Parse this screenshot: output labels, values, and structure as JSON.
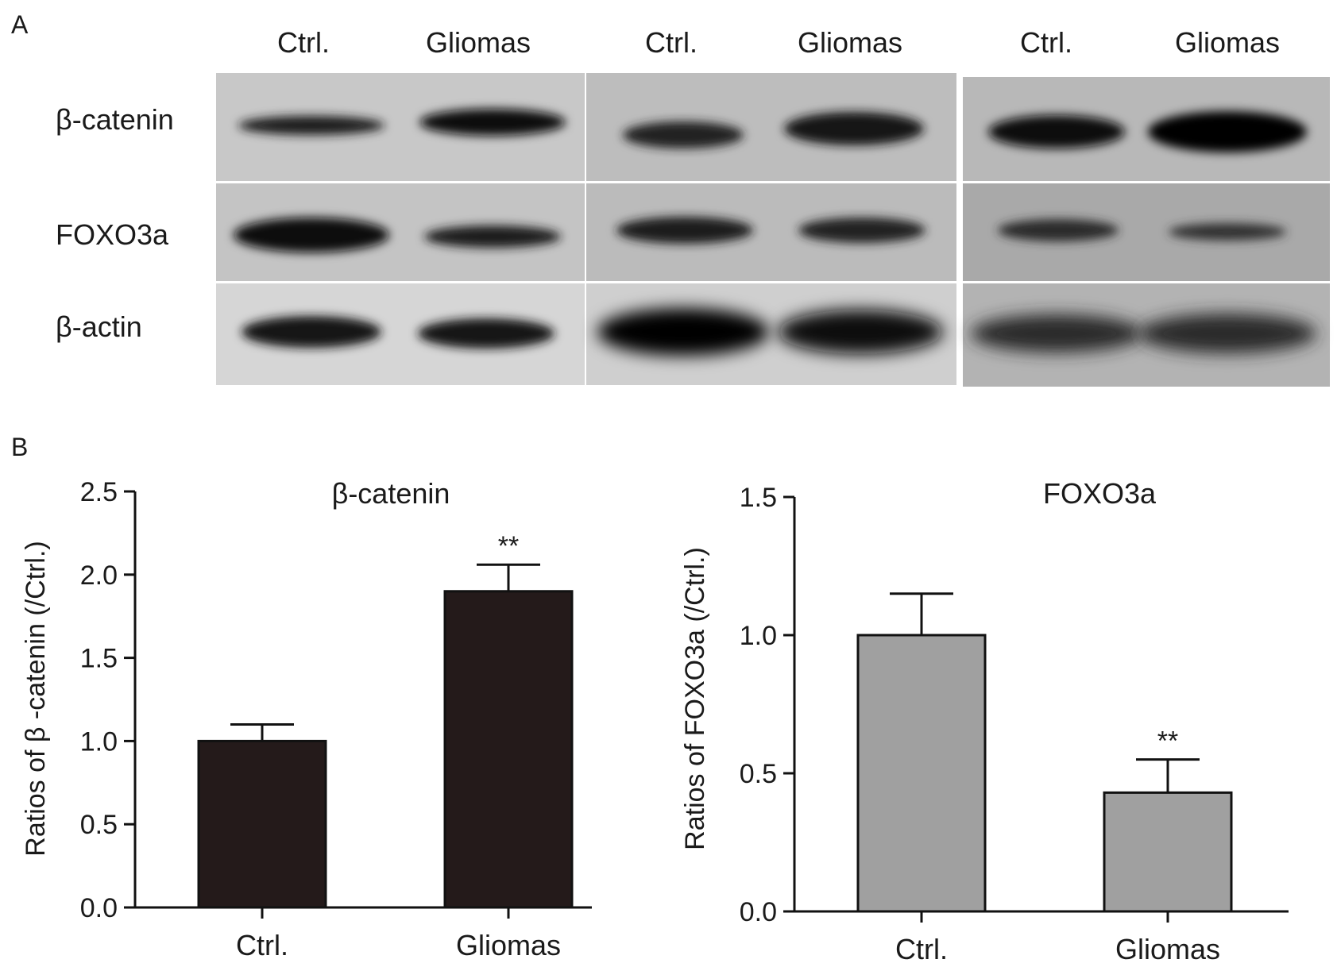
{
  "panel_a": {
    "label": "A",
    "blots": [
      {
        "lanes": [
          "Ctrl.",
          "Gliomas"
        ]
      },
      {
        "lanes": [
          "Ctrl.",
          "Gliomas"
        ]
      },
      {
        "lanes": [
          "Ctrl.",
          "Gliomas"
        ]
      }
    ],
    "rows": [
      "β-catenin",
      "FOXO3a",
      "β-actin"
    ]
  },
  "panel_b": {
    "label": "B"
  },
  "chart_data": [
    {
      "type": "bar",
      "title": "β-catenin",
      "xlabel": "",
      "ylabel": "Ratios of β -catenin (/Ctrl.)",
      "categories": [
        "Ctrl.",
        "Gliomas"
      ],
      "values": [
        1.0,
        1.9
      ],
      "errors": [
        0.1,
        0.16
      ],
      "annotations": [
        "",
        "**"
      ],
      "ylim": [
        0,
        2.5
      ],
      "yticks": [
        "0.0",
        "0.5",
        "1.0",
        "1.5",
        "2.0",
        "2.5"
      ],
      "bar_color": "#241a1a",
      "grid": false
    },
    {
      "type": "bar",
      "title": "FOXO3a",
      "xlabel": "",
      "ylabel": "Ratios of FOXO3a (/Ctrl.)",
      "categories": [
        "Ctrl.",
        "Gliomas"
      ],
      "values": [
        1.0,
        0.43
      ],
      "errors": [
        0.15,
        0.12
      ],
      "annotations": [
        "",
        "**"
      ],
      "ylim": [
        0,
        1.5
      ],
      "yticks": [
        "0.0",
        "0.5",
        "1.0",
        "1.5"
      ],
      "bar_color": "#a0a0a0",
      "grid": false
    }
  ]
}
